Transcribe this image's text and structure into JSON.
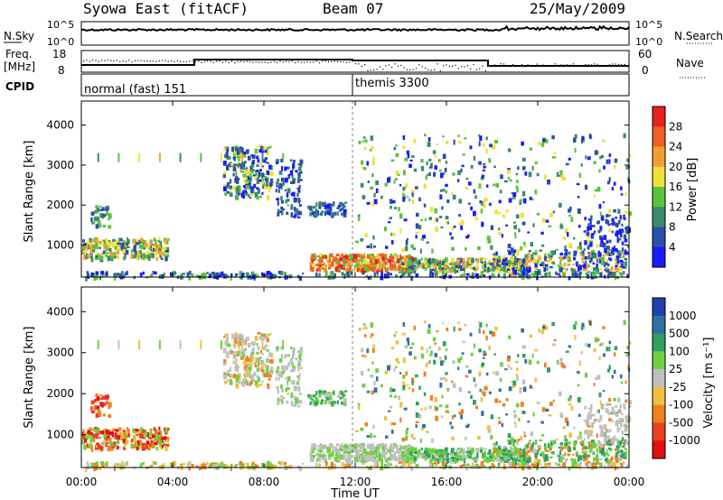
{
  "header": {
    "title": "Syowa East (fitACF)",
    "beam": "Beam 07",
    "date": "25/May/2009"
  },
  "top_panels": {
    "nsky_label": "N.Sky",
    "nsky_ticks": [
      "10^5",
      "10^0"
    ],
    "nsearch_label": "N.Search",
    "nsearch_ticks": [
      "10^5",
      "10^0"
    ],
    "freq_label_1": "Freq.",
    "freq_label_2": "[MHz]",
    "freq_ticks": [
      "18",
      "8"
    ],
    "nave_label": "Nave",
    "nave_ticks": [
      "60",
      "0"
    ],
    "cpid_label": "CPID",
    "cpid_segments": [
      "normal (fast) 151",
      "themis 3300"
    ]
  },
  "chart_data": [
    {
      "type": "heatmap",
      "ylabel": "Slant Range [km]",
      "xlabel": "",
      "y_ticks": [
        1000,
        2000,
        3000,
        4000
      ],
      "ylim": [
        200,
        4600
      ],
      "x_ticks": [
        "00:00",
        "04:00",
        "08:00",
        "12:00",
        "16:00",
        "20:00",
        "00:00"
      ],
      "xlim_hours": [
        0,
        24
      ],
      "colorbar": {
        "label": "Power [dB]",
        "ticks": [
          "4",
          "8",
          "12",
          "16",
          "20",
          "24",
          "28"
        ],
        "colors": [
          "#1a1aff",
          "#2b4fa8",
          "#3a8a6a",
          "#5cc23a",
          "#f0e03a",
          "#f0a030",
          "#f06020",
          "#e82020"
        ]
      }
    },
    {
      "type": "heatmap",
      "ylabel": "Slant Range [km]",
      "xlabel": "Time UT",
      "y_ticks": [
        1000,
        2000,
        3000,
        4000
      ],
      "ylim": [
        200,
        4600
      ],
      "x_ticks": [
        "00:00",
        "04:00",
        "08:00",
        "12:00",
        "16:00",
        "20:00",
        "00:00"
      ],
      "xlim_hours": [
        0,
        24
      ],
      "colorbar": {
        "label": "Velocity [m s⁻¹]",
        "ticks": [
          "1000",
          "500",
          "100",
          "25",
          "-25",
          "-100",
          "-500",
          "-1000"
        ],
        "colors": [
          "#2040b0",
          "#3070a0",
          "#30a060",
          "#70d040",
          "#c0c0c0",
          "#f0c040",
          "#f08020",
          "#e84020",
          "#e01010"
        ]
      }
    }
  ]
}
